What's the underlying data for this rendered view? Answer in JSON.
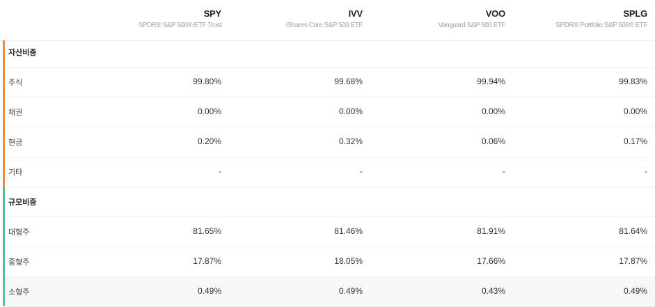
{
  "columns": [
    {
      "ticker": "SPY",
      "name": "SPDR® S&P 500® ETF Trust"
    },
    {
      "ticker": "IVV",
      "name": "iShares Core S&P 500 ETF"
    },
    {
      "ticker": "VOO",
      "name": "Vanguard S&P 500 ETF"
    },
    {
      "ticker": "SPLG",
      "name": "SPDR® Portfolio S&P 500® ETF"
    }
  ],
  "sections": [
    {
      "title": "자산비중",
      "accent_color": "#f2883a",
      "rows": [
        {
          "label": "주식",
          "values": [
            "99.80%",
            "99.68%",
            "99.94%",
            "99.83%"
          ]
        },
        {
          "label": "채권",
          "values": [
            "0.00%",
            "0.00%",
            "0.00%",
            "0.00%"
          ]
        },
        {
          "label": "현금",
          "values": [
            "0.20%",
            "0.32%",
            "0.06%",
            "0.17%"
          ]
        },
        {
          "label": "기타",
          "values": [
            "-",
            "-",
            "-",
            "-"
          ]
        }
      ]
    },
    {
      "title": "규모비중",
      "accent_color": "#4cc59a",
      "rows": [
        {
          "label": "대형주",
          "values": [
            "81.65%",
            "81.46%",
            "81.91%",
            "81.64%"
          ]
        },
        {
          "label": "중형주",
          "values": [
            "17.87%",
            "18.05%",
            "17.66%",
            "17.87%"
          ]
        },
        {
          "label": "소형주",
          "values": [
            "0.49%",
            "0.49%",
            "0.43%",
            "0.49%"
          ]
        }
      ]
    }
  ]
}
